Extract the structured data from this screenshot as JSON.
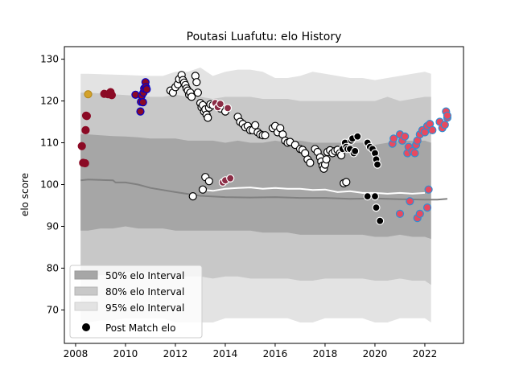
{
  "chart_data": {
    "type": "scatter",
    "title": "Poutasi Luafutu: elo History",
    "xlabel": "",
    "ylabel": "elo score",
    "xlim": [
      2007.55,
      2023.55
    ],
    "ylim": [
      62,
      133
    ],
    "xticks": [
      2008,
      2010,
      2012,
      2014,
      2016,
      2018,
      2020,
      2022
    ],
    "yticks": [
      70,
      80,
      90,
      100,
      110,
      120,
      130
    ],
    "grid": false,
    "legend_position": "lower-left",
    "legend": [
      "50% elo Interval",
      "80% elo Interval",
      "95% elo Interval",
      "Post Match elo"
    ],
    "colors": {
      "band50": "#a6a6a6",
      "band80": "#c8c8c8",
      "band95": "#e3e3e3",
      "median_line": "#808080",
      "white_line": "#ffffff",
      "point_fill": "#ffffff",
      "point_edge": "#000000"
    },
    "band_x": [
      2008.2,
      2008.5,
      2009,
      2009.5,
      2010,
      2010.5,
      2011,
      2011.5,
      2012,
      2012.5,
      2013,
      2013.5,
      2014,
      2014.5,
      2015,
      2015.5,
      2016,
      2016.5,
      2017,
      2017.5,
      2018,
      2018.5,
      2019,
      2019.5,
      2020,
      2020.5,
      2021,
      2021.5,
      2022,
      2022.25
    ],
    "band95": {
      "upper": [
        126.5,
        126.5,
        126.4,
        126.3,
        126.2,
        126.1,
        126,
        126,
        127,
        127,
        128,
        126,
        127,
        127.5,
        127.5,
        127,
        125.5,
        125.5,
        126,
        127,
        126.5,
        126,
        125.5,
        125.5,
        125,
        125.5,
        126,
        126.5,
        127,
        126.5
      ],
      "lower": [
        67,
        67,
        67.5,
        67.5,
        68,
        68,
        68,
        68,
        67,
        67,
        67,
        67,
        68,
        68,
        68,
        68,
        68,
        68,
        67,
        67,
        68,
        68,
        68,
        68,
        67,
        67,
        68,
        68,
        68,
        67
      ]
    },
    "band80": {
      "upper": [
        122,
        122,
        121.8,
        121.6,
        121.4,
        121.2,
        121,
        121,
        121.5,
        121,
        121,
        120.5,
        121,
        121,
        121,
        120.5,
        120.5,
        120.5,
        120,
        120,
        120,
        120,
        120,
        120,
        120,
        121,
        120,
        120.5,
        121,
        121
      ],
      "lower": [
        78,
        78,
        78.3,
        78.5,
        79,
        79,
        79,
        78,
        78,
        78,
        78,
        77.5,
        78,
        78,
        77.5,
        77.5,
        77.5,
        77.5,
        77,
        77,
        77.5,
        77.5,
        77.5,
        77.5,
        77,
        77,
        77.5,
        77,
        77,
        76
      ]
    },
    "band50": {
      "upper": [
        112,
        112,
        111.8,
        111.6,
        111.5,
        111.3,
        111,
        111,
        111,
        110.5,
        110.5,
        110.5,
        110,
        110.5,
        110,
        110,
        110.5,
        110,
        110.5,
        110,
        110,
        110,
        110,
        110,
        109.5,
        110,
        110.5,
        110.5,
        110.5,
        110
      ],
      "lower": [
        89,
        89,
        89.5,
        89.5,
        90,
        89.5,
        89.5,
        89.5,
        89,
        89,
        89,
        89,
        89,
        89,
        89,
        88.5,
        88.5,
        88.5,
        88,
        88,
        88,
        88,
        88,
        88,
        87.5,
        87.5,
        88,
        87.5,
        87.5,
        87
      ]
    },
    "median_line": {
      "x": [
        2008.2,
        2008.5,
        2009.0,
        2009.5,
        2009.6,
        2010.0,
        2010.5,
        2011.0,
        2012.0,
        2013.0,
        2014.0,
        2015.0,
        2016.0,
        2017.0,
        2018.0,
        2019.0,
        2020.0,
        2021.0,
        2022.0,
        2022.5,
        2022.9
      ],
      "y": [
        101,
        101.2,
        101.1,
        101.0,
        100.5,
        100.5,
        100.0,
        99.2,
        98.2,
        97.3,
        97.0,
        96.9,
        97.0,
        96.8,
        96.8,
        96.6,
        96.7,
        96.5,
        96.4,
        96.4,
        96.6
      ]
    },
    "white_line": {
      "x": [
        2013.0,
        2013.5,
        2014.0,
        2014.5,
        2015.0,
        2015.5,
        2016.0,
        2016.5,
        2017.0,
        2017.5,
        2018.0,
        2018.5,
        2019.0,
        2019.5,
        2020.0,
        2020.5,
        2021.0,
        2021.5,
        2022.0
      ],
      "y": [
        98.8,
        98.5,
        99.0,
        99.2,
        99.3,
        99.0,
        99.2,
        99.0,
        99.0,
        98.7,
        98.8,
        98.2,
        98.4,
        98.0,
        98.0,
        97.8,
        98.0,
        97.8,
        98.0
      ]
    },
    "series": [
      {
        "fill": "#8b0a25",
        "edge": "#8b0a25",
        "x": [
          2008.25,
          2008.3,
          2008.38,
          2008.4,
          2008.42,
          2008.45,
          2009.15,
          2009.3,
          2009.4,
          2009.45
        ],
        "y": [
          109.2,
          105.2,
          105.1,
          113.0,
          116.5,
          116.4,
          121.7,
          121.6,
          122.1,
          121.4
        ]
      },
      {
        "fill": "#d4a22a",
        "edge": "#b58a20",
        "x": [
          2008.5
        ],
        "y": [
          121.6
        ]
      },
      {
        "fill": "#8b0a25",
        "edge": "#0000cc",
        "x": [
          2010.4,
          2010.6,
          2010.62,
          2010.65,
          2010.7,
          2010.72,
          2010.75,
          2010.8,
          2010.82,
          2010.85
        ],
        "y": [
          121.5,
          117.5,
          119.8,
          121.3,
          119.7,
          122.0,
          123.0,
          124.5,
          123.3,
          122.8
        ]
      },
      {
        "fill": "#ffffff",
        "edge": "#000000",
        "x": [
          2011.8,
          2011.9,
          2012.0,
          2012.1,
          2012.15,
          2012.25,
          2012.3,
          2012.35,
          2012.4,
          2012.45,
          2012.5,
          2012.55,
          2012.6,
          2012.65,
          2012.8,
          2012.85,
          2012.9,
          2013.0,
          2013.05,
          2013.1,
          2013.15,
          2013.2,
          2013.25,
          2013.3,
          2013.35,
          2013.4,
          2013.5,
          2013.8,
          2014.0,
          2014.5,
          2014.6,
          2014.7,
          2014.8,
          2014.9,
          2015.0,
          2015.1,
          2015.2,
          2015.3,
          2015.4,
          2015.5,
          2015.6,
          2015.9,
          2016.0,
          2016.1,
          2016.2,
          2016.3,
          2016.4,
          2016.5,
          2016.6,
          2016.8,
          2017.0,
          2017.1,
          2017.2,
          2017.3,
          2017.4,
          2017.6,
          2017.7,
          2017.8,
          2017.85,
          2017.9,
          2017.95,
          2018.0,
          2018.05,
          2018.1,
          2018.2,
          2018.3
        ],
        "y": [
          122.5,
          122.0,
          123.3,
          124.0,
          125.2,
          126.2,
          125.0,
          124.4,
          123.8,
          123.0,
          122.5,
          121.5,
          122.0,
          121.0,
          126.0,
          124.5,
          122.0,
          119.5,
          118.5,
          119.0,
          117.5,
          118.0,
          116.7,
          116.0,
          118.4,
          119.2,
          119.0,
          118.2,
          117.5,
          116.2,
          115.0,
          114.5,
          113.7,
          114.0,
          113.0,
          113.0,
          114.2,
          112.5,
          112.0,
          111.8,
          111.8,
          113.5,
          114.0,
          112.5,
          113.5,
          112.0,
          110.5,
          110.0,
          110.2,
          109.5,
          108.5,
          108.3,
          107.5,
          106.0,
          105.2,
          108.5,
          107.8,
          106.5,
          105.5,
          104.5,
          103.8,
          104.8,
          106.0,
          107.8,
          108.2,
          107.5
        ]
      },
      {
        "fill": "#ffffff",
        "edge": "#000000",
        "x": [
          2012.7,
          2013.1,
          2013.2,
          2013.35
        ],
        "y": [
          97.2,
          98.8,
          101.8,
          100.8
        ]
      },
      {
        "fill": "#8b2c45",
        "edge": "#ffffff",
        "x": [
          2013.6,
          2013.7,
          2013.8,
          2013.9,
          2014.0,
          2014.1,
          2014.2
        ],
        "y": [
          119.5,
          118.5,
          119.3,
          100.5,
          101.0,
          118.3,
          101.5
        ]
      },
      {
        "fill": "#ffffff",
        "edge": "#000000",
        "x": [
          2018.4,
          2018.5,
          2018.6,
          2018.65
        ],
        "y": [
          108.0,
          108.3,
          107.5,
          107.0
        ]
      },
      {
        "fill": "#000000",
        "edge": "#ffffff",
        "x": [
          2018.7,
          2018.8,
          2018.85,
          2018.9,
          2019.0,
          2019.05,
          2019.1,
          2019.15,
          2019.2,
          2019.3,
          2019.7,
          2019.8,
          2019.9,
          2020.0,
          2020.05,
          2020.1
        ],
        "y": [
          108.5,
          110.0,
          109.0,
          108.5,
          108.5,
          110.5,
          111.0,
          107.5,
          108.0,
          111.5,
          110.0,
          109.0,
          108.5,
          107.5,
          106.0,
          104.8
        ]
      },
      {
        "fill": "#ffffff",
        "edge": "#000000",
        "x": [
          2018.75,
          2018.85
        ],
        "y": [
          100.3,
          100.6
        ]
      },
      {
        "fill": "#000000",
        "edge": "#ffffff",
        "x": [
          2019.7,
          2020.0,
          2020.05,
          2020.2
        ],
        "y": [
          97.2,
          97.2,
          94.5,
          91.3
        ]
      },
      {
        "fill": "#e84a5f",
        "edge": "#2f8fd4",
        "x": [
          2020.7,
          2020.75,
          2021.0,
          2021.1,
          2021.2,
          2021.3,
          2021.35,
          2021.5,
          2021.6,
          2021.65,
          2021.7,
          2021.8,
          2021.9,
          2022.0,
          2022.1,
          2022.2,
          2022.3,
          2022.6,
          2022.7,
          2022.8,
          2022.9
        ],
        "y": [
          109.8,
          111.0,
          112.0,
          110.5,
          111.5,
          107.5,
          109.0,
          108.0,
          107.5,
          109.5,
          110.5,
          112.0,
          113.0,
          112.5,
          114.0,
          114.5,
          113.0,
          115.0,
          113.5,
          114.3,
          116.0
        ]
      },
      {
        "fill": "#e84a5f",
        "edge": "#2f8fd4",
        "x": [
          2021.0,
          2021.4,
          2021.7,
          2021.8,
          2022.1,
          2022.15
        ],
        "y": [
          93.0,
          96.0,
          92.0,
          93.0,
          94.5,
          98.8
        ]
      },
      {
        "fill": "#e84a5f",
        "edge": "#2f8fd4",
        "x": [
          2022.85,
          2022.9
        ],
        "y": [
          117.5,
          116.5
        ]
      }
    ]
  }
}
